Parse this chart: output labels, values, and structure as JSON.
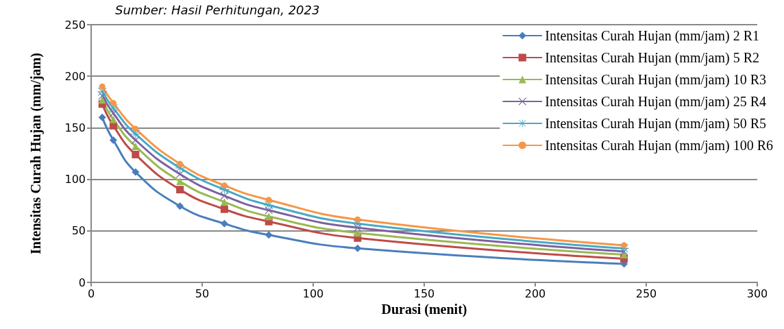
{
  "chart_data": {
    "type": "line",
    "xlabel": "Durasi (menit)",
    "ylabel": "Intensitas Curah Hujan (mm/jam)",
    "annotations": [
      "Sumber: Hasil Perhitungan, 2023"
    ],
    "x": [
      5,
      10,
      20,
      40,
      60,
      80,
      120,
      240
    ],
    "xlim": [
      0,
      300
    ],
    "xticks": [
      0,
      50,
      100,
      150,
      200,
      250,
      300
    ],
    "ylim": [
      0,
      250
    ],
    "yticks": [
      0,
      50,
      100,
      150,
      200,
      250
    ],
    "grid": "y",
    "legend": "top right",
    "line_style": "solid",
    "series": [
      {
        "name": "Intensitas Curah Hujan (mm/jam) 2 R1",
        "color": "#4a7ebb",
        "marker": "diamond",
        "values": [
          160,
          138,
          107,
          74,
          57,
          46,
          33,
          18
        ]
      },
      {
        "name": "Intensitas Curah Hujan (mm/jam) 5 R2",
        "color": "#be4b48",
        "marker": "square",
        "values": [
          173,
          152,
          124,
          90,
          71,
          59,
          43,
          23
        ]
      },
      {
        "name": "Intensitas Curah Hujan (mm/jam) 10 R3",
        "color": "#98b954",
        "marker": "triangle",
        "values": [
          177,
          158,
          132,
          98,
          78,
          64,
          48,
          27
        ]
      },
      {
        "name": "Intensitas Curah Hujan (mm/jam) 25 R4",
        "color": "#7d60a0",
        "marker": "cross",
        "values": [
          181,
          164,
          138,
          105,
          84,
          70,
          53,
          30
        ]
      },
      {
        "name": "Intensitas Curah Hujan (mm/jam) 50 R5",
        "color": "#46aac5",
        "marker": "star",
        "values": [
          185,
          169,
          144,
          111,
          90,
          75,
          57,
          33
        ]
      },
      {
        "name": "Intensitas Curah Hujan (mm/jam) 100 R6",
        "color": "#f79646",
        "marker": "circle",
        "values": [
          190,
          174,
          149,
          115,
          94,
          80,
          61,
          36
        ]
      }
    ]
  }
}
